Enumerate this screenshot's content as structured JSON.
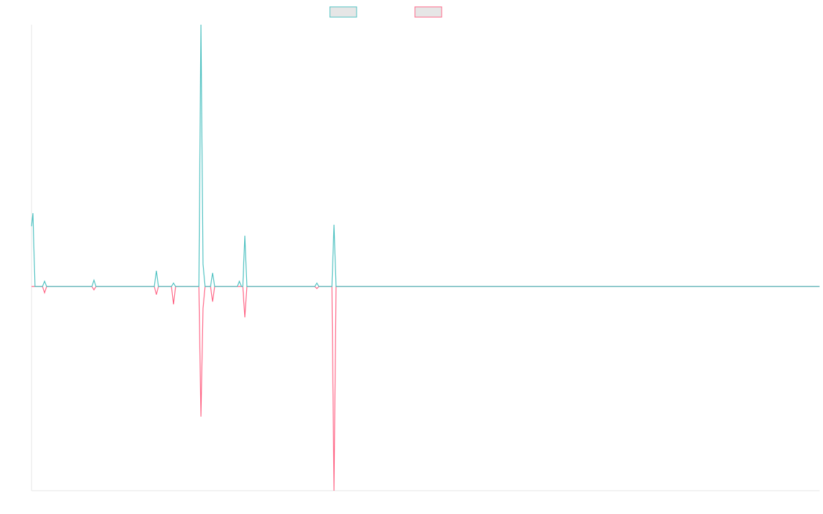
{
  "chart_data": {
    "type": "line",
    "x": [
      0,
      2,
      5,
      16,
      19,
      22,
      88,
      91,
      94,
      179,
      182,
      185,
      204,
      207,
      210,
      244,
      247,
      250,
      253,
      261,
      264,
      267,
      300,
      303,
      306,
      308,
      311,
      314,
      413,
      416,
      419,
      438,
      441,
      444,
      1149
    ],
    "xlim": [
      0,
      1149
    ],
    "ylim": [
      -78,
      100
    ],
    "series": [
      {
        "color": "#4bc0c0",
        "values": [
          23,
          28,
          0,
          0,
          2,
          0,
          0,
          2.4,
          0,
          0,
          6,
          0,
          0,
          1.3,
          0,
          0,
          100,
          8.6,
          0,
          0,
          5.2,
          0,
          0,
          2,
          0,
          0,
          19.4,
          0,
          0,
          1.3,
          0,
          0,
          23.6,
          0,
          0
        ]
      },
      {
        "color": "#ff6384",
        "values": [
          0,
          0,
          0,
          0,
          -2.4,
          0,
          0,
          -1.3,
          0,
          0,
          -3.1,
          0,
          0,
          -6.8,
          0,
          0,
          -49.7,
          -8.4,
          0,
          0,
          -5.8,
          0,
          0,
          0,
          0,
          0,
          -11.8,
          0,
          0,
          -0.8,
          0,
          0,
          -78,
          0,
          0
        ]
      }
    ]
  }
}
